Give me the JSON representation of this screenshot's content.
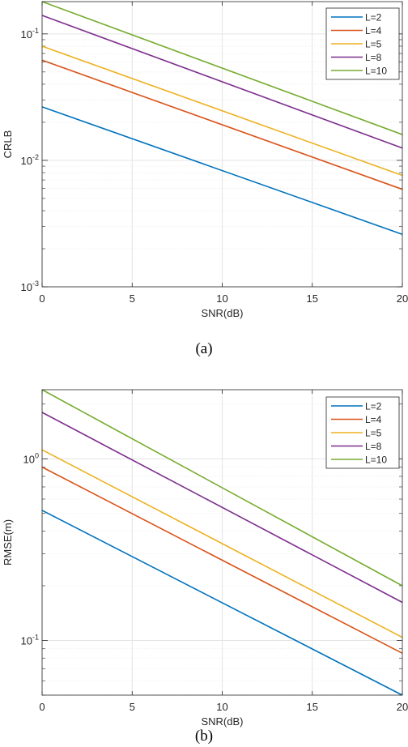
{
  "captions": [
    "(a)",
    "(b)"
  ],
  "colors": {
    "L=2": "#0072BD",
    "L=4": "#D95319",
    "L=5": "#EDB120",
    "L=8": "#7E2F8E",
    "L=10": "#77AC30"
  },
  "chart_data": [
    {
      "type": "line",
      "xlabel": "SNR(dB)",
      "ylabel": "CRLB",
      "xlim": [
        0,
        20
      ],
      "ylim": [
        0.001,
        0.18
      ],
      "yscale": "log",
      "grid": true,
      "legend_position": "top-right",
      "xticks": [
        "0",
        "5",
        "10",
        "15",
        "20"
      ],
      "yticks": [
        {
          "base": "10",
          "exp": "-1",
          "value": 0.1
        },
        {
          "base": "10",
          "exp": "-2",
          "value": 0.01
        },
        {
          "base": "10",
          "exp": "-3",
          "value": 0.001
        }
      ],
      "x": [
        0,
        20
      ],
      "series": [
        {
          "name": "L=2",
          "values": [
            0.0265,
            0.0026
          ]
        },
        {
          "name": "L=4",
          "values": [
            0.062,
            0.0059
          ]
        },
        {
          "name": "L=5",
          "values": [
            0.08,
            0.0076
          ]
        },
        {
          "name": "L=8",
          "values": [
            0.14,
            0.0125
          ]
        },
        {
          "name": "L=10",
          "values": [
            0.18,
            0.016
          ]
        }
      ]
    },
    {
      "type": "line",
      "xlabel": "SNR(dB)",
      "ylabel": "RMSE(m)",
      "xlim": [
        0,
        20
      ],
      "ylim": [
        0.05,
        2.4
      ],
      "yscale": "log",
      "grid": true,
      "legend_position": "top-right",
      "xticks": [
        "0",
        "5",
        "10",
        "15",
        "20"
      ],
      "yticks": [
        {
          "base": "10",
          "exp": "0",
          "value": 1
        },
        {
          "base": "10",
          "exp": "-1",
          "value": 0.1
        }
      ],
      "x": [
        0,
        20
      ],
      "series": [
        {
          "name": "L=2",
          "values": [
            0.52,
            0.05
          ]
        },
        {
          "name": "L=4",
          "values": [
            0.9,
            0.085
          ]
        },
        {
          "name": "L=5",
          "values": [
            1.12,
            0.104
          ]
        },
        {
          "name": "L=8",
          "values": [
            1.8,
            0.162
          ]
        },
        {
          "name": "L=10",
          "values": [
            2.4,
            0.2
          ]
        }
      ]
    }
  ]
}
